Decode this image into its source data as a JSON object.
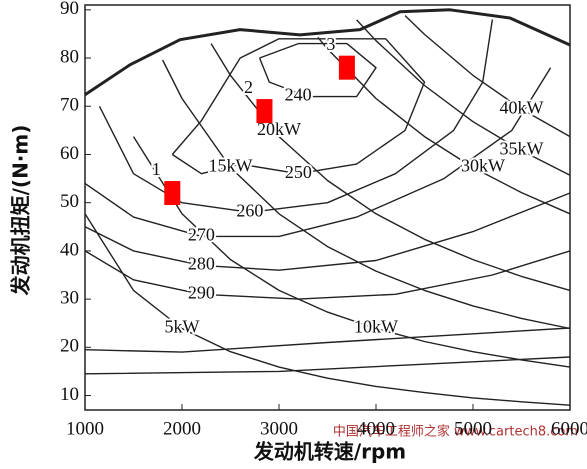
{
  "chart_data": {
    "type": "line",
    "xlabel": "发动机转速/rpm",
    "ylabel": "发动机扭矩/(N·m)",
    "xlim": [
      1000,
      6000
    ],
    "ylim": [
      7,
      91
    ],
    "xticks": [
      1000,
      2000,
      3000,
      4000,
      5000,
      6000
    ],
    "yticks": [
      10,
      20,
      30,
      40,
      50,
      60,
      70,
      80,
      90
    ],
    "color": "#222222",
    "series": [
      {
        "x": [
          1000,
          1464,
          1979,
          2598,
          3216,
          3835,
          4247,
          4763,
          5381,
          6000
        ],
        "values": [
          72.4,
          78.6,
          83.8,
          85.9,
          84.8,
          85.9,
          89.6,
          90,
          88.3,
          82.7
        ],
        "line_width": 3
      },
      {
        "name": "5kW",
        "x": [
          1000,
          1500,
          2000,
          2500,
          3000,
          3500,
          4000,
          4500,
          5000,
          5500,
          6000
        ],
        "values": [
          47.7,
          31.8,
          23.9,
          19.1,
          15.9,
          13.6,
          11.9,
          10.6,
          9.5,
          8.7,
          8.0
        ]
      },
      {
        "name": "10kW",
        "x": [
          1500,
          2000,
          2500,
          3000,
          3500,
          4000,
          4500,
          5000,
          5500,
          6000
        ],
        "values": [
          63.7,
          47.7,
          38.2,
          31.8,
          27.3,
          23.9,
          21.2,
          19.1,
          17.4,
          15.9
        ]
      },
      {
        "name": "15kW",
        "x": [
          1800,
          2000,
          2500,
          3000,
          3500,
          4000,
          4500,
          5000,
          5500,
          6000
        ],
        "values": [
          79.6,
          71.6,
          57.3,
          47.7,
          40.9,
          35.8,
          31.8,
          28.6,
          26.0,
          23.9
        ]
      },
      {
        "name": "20kW",
        "x": [
          2300,
          2500,
          3000,
          3500,
          4000,
          4500,
          5000,
          5500,
          6000
        ],
        "values": [
          83.0,
          76.4,
          63.7,
          54.6,
          47.7,
          42.4,
          38.2,
          34.7,
          31.8
        ]
      },
      {
        "name": "30kW",
        "x": [
          3400,
          3500,
          4000,
          4500,
          5000,
          5500,
          6000
        ],
        "values": [
          84.3,
          81.9,
          71.6,
          63.7,
          57.3,
          52.1,
          47.7
        ]
      },
      {
        "name": "35kW",
        "x": [
          3800,
          4000,
          4500,
          5000,
          5500,
          6000
        ],
        "values": [
          87.9,
          83.6,
          74.3,
          66.8,
          60.8,
          55.7
        ]
      },
      {
        "name": "40kW",
        "x": [
          4300,
          4500,
          5000,
          5500,
          6000
        ],
        "values": [
          88.8,
          84.9,
          76.4,
          69.4,
          63.7
        ]
      },
      {
        "name": "240",
        "x": [
          2800,
          3200,
          3700,
          4000,
          3800,
          3300,
          2900,
          2800
        ],
        "values": [
          80,
          83,
          83,
          78,
          72,
          72,
          75,
          80
        ]
      },
      {
        "name": "250",
        "x": [
          1900,
          2200,
          2600,
          3000,
          3500,
          4100,
          4500,
          4300,
          3800,
          3200,
          2600,
          2200,
          1900
        ],
        "values": [
          60,
          67,
          80,
          84,
          84,
          84,
          75,
          65,
          58,
          56,
          58,
          56,
          60
        ]
      },
      {
        "name": "260",
        "x": [
          1150,
          1500,
          2000,
          2700,
          3500,
          4200,
          4800,
          5100,
          5200
        ],
        "values": [
          70,
          56,
          50,
          48,
          50,
          56,
          65,
          75,
          88
        ]
      },
      {
        "name": "270",
        "x": [
          1000,
          1500,
          2200,
          3000,
          3800,
          4700,
          5400,
          5800
        ],
        "values": [
          54,
          47,
          43,
          43,
          47,
          55,
          65,
          78
        ]
      },
      {
        "name": "280",
        "x": [
          1000,
          1500,
          2200,
          3000,
          4000,
          5000,
          6000
        ],
        "values": [
          45,
          40,
          37,
          36,
          38,
          44,
          52
        ]
      },
      {
        "name": "290",
        "x": [
          1000,
          1500,
          2200,
          3200,
          4200,
          5200,
          6000
        ],
        "values": [
          40,
          34,
          31,
          30,
          31,
          35,
          40
        ]
      },
      {
        "x": [
          1000,
          2000,
          3500,
          6000
        ],
        "values": [
          19.5,
          19,
          21,
          24
        ]
      },
      {
        "x": [
          1000,
          3000,
          6000
        ],
        "values": [
          14.5,
          15,
          18
        ]
      }
    ],
    "markers": {
      "color": "#ff0000",
      "labels": [
        "1",
        "2",
        "3"
      ],
      "x": [
        1900,
        2850,
        3700
      ],
      "values": [
        52,
        69,
        78
      ]
    },
    "watermark": "中国汽车工程师之家 www.cartech8.com"
  }
}
